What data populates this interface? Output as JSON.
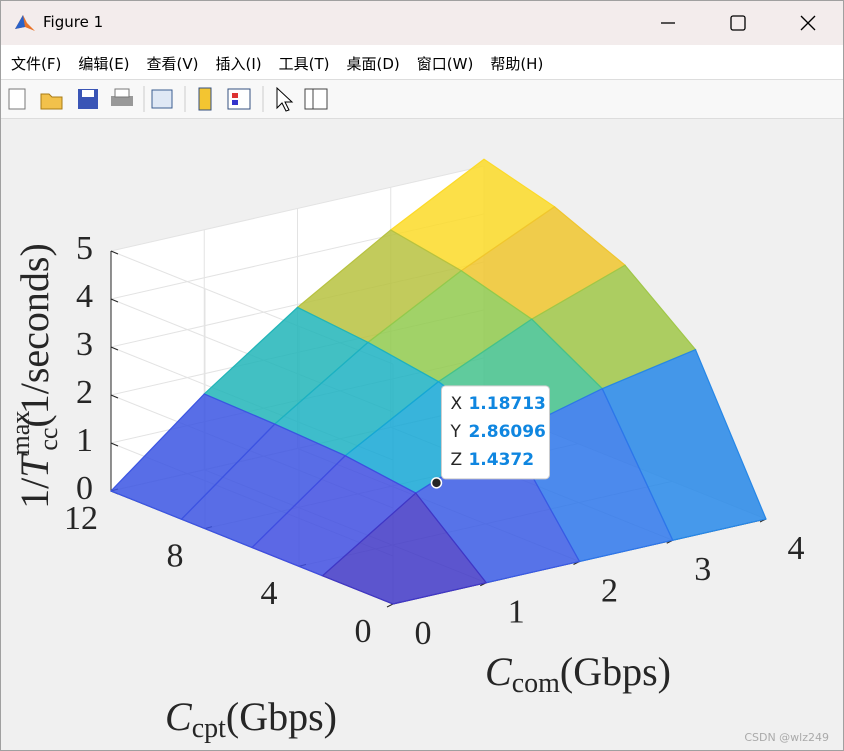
{
  "window": {
    "title": "Figure 1",
    "menu": [
      "文件(F)",
      "编辑(E)",
      "查看(V)",
      "插入(I)",
      "工具(T)",
      "桌面(D)",
      "窗口(W)",
      "帮助(H)"
    ]
  },
  "chart_data": {
    "type": "surface",
    "xlabel": {
      "symbol": "C",
      "sub": "com",
      "unit": "(Gbps)"
    },
    "ylabel": {
      "symbol": "C",
      "sub": "cpt",
      "unit": "(Gbps)"
    },
    "zlabel": {
      "prefix": "1/",
      "symbol": "T",
      "sub": "cc",
      "sup": "max",
      "unit": "(1/seconds)"
    },
    "xlim": [
      0,
      4
    ],
    "ylim": [
      0,
      12
    ],
    "zlim": [
      0,
      5
    ],
    "xticks": [
      0,
      1,
      2,
      3,
      4
    ],
    "yticks": [
      0,
      4,
      8,
      12
    ],
    "zticks": [
      0,
      1,
      2,
      3,
      4,
      5
    ],
    "grid": true,
    "colormap": [
      "#3e26a8",
      "#4148e0",
      "#2a7eec",
      "#14a9d4",
      "#2cbfa0",
      "#8ccb4f",
      "#e6b930",
      "#fcd52c",
      "#f9fb0e"
    ],
    "x": [
      0,
      1,
      2,
      3,
      4
    ],
    "y": [
      0,
      3,
      6,
      9,
      12
    ],
    "z": [
      [
        0,
        0,
        0,
        0,
        0
      ],
      [
        0,
        1.28,
        2.06,
        2.57,
        2.94
      ],
      [
        0,
        1.47,
        2.57,
        3.43,
        4.11
      ],
      [
        0,
        1.54,
        2.8,
        3.85,
        4.74
      ],
      [
        0,
        1.58,
        2.94,
        4.11,
        5.14
      ]
    ],
    "datatip": {
      "x_label": "X",
      "x": 1.18713,
      "y_label": "Y",
      "y": 2.86096,
      "z_label": "Z",
      "z": 1.4372
    }
  },
  "watermark": "CSDN @wlz249"
}
